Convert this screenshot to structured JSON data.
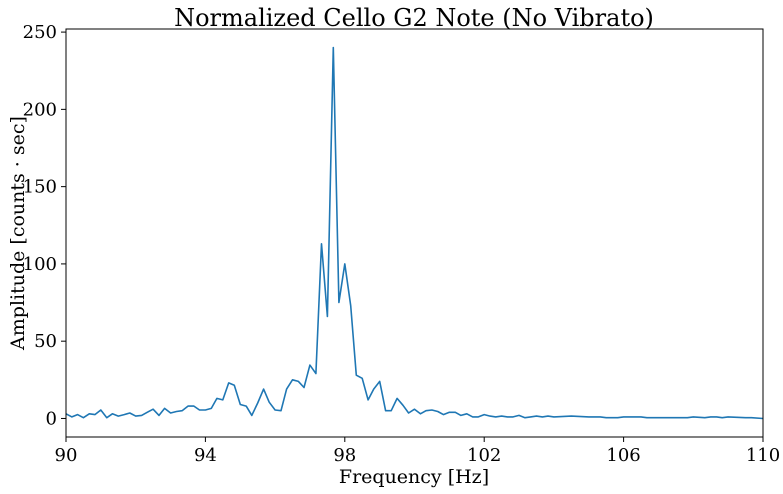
{
  "chart_data": {
    "type": "line",
    "title": "Normalized Cello G2 Note (No Vibrato)",
    "xlabel": "Frequency [Hz]",
    "ylabel": "Amplitude [counts · sec]",
    "xlim": [
      90,
      110
    ],
    "ylim": [
      -12,
      252
    ],
    "x_ticks": [
      90,
      94,
      98,
      102,
      106,
      110
    ],
    "x_tick_labels": [
      "90",
      "94",
      "98",
      "102",
      "106",
      "110"
    ],
    "y_ticks": [
      0,
      50,
      100,
      150,
      200,
      250
    ],
    "y_tick_labels": [
      "0",
      "50",
      "100",
      "150",
      "200",
      "250"
    ],
    "grid": false,
    "series": [
      {
        "color": "#1f77b4",
        "x": [
          90.0,
          90.17,
          90.33,
          90.5,
          90.67,
          90.83,
          91.0,
          91.17,
          91.33,
          91.5,
          91.67,
          91.83,
          92.0,
          92.17,
          92.33,
          92.5,
          92.67,
          92.83,
          93.0,
          93.17,
          93.33,
          93.5,
          93.67,
          93.83,
          94.0,
          94.17,
          94.33,
          94.5,
          94.67,
          94.83,
          95.0,
          95.17,
          95.33,
          95.5,
          95.67,
          95.83,
          96.0,
          96.17,
          96.33,
          96.5,
          96.67,
          96.83,
          97.0,
          97.17,
          97.33,
          97.5,
          97.67,
          97.83,
          98.0,
          98.17,
          98.33,
          98.5,
          98.67,
          98.83,
          99.0,
          99.17,
          99.33,
          99.5,
          99.67,
          99.83,
          100.0,
          100.17,
          100.33,
          100.5,
          100.67,
          100.83,
          101.0,
          101.17,
          101.33,
          101.5,
          101.67,
          101.83,
          102.0,
          102.17,
          102.33,
          102.5,
          102.67,
          102.83,
          103.0,
          103.17,
          103.33,
          103.5,
          103.67,
          103.83,
          104.0,
          104.5,
          105.0,
          105.33,
          105.5,
          105.83,
          106.0,
          106.17,
          106.5,
          106.67,
          107.0,
          107.5,
          107.83,
          108.0,
          108.33,
          108.5,
          108.67,
          108.83,
          109.0,
          109.5,
          109.67,
          110.0
        ],
        "y": [
          3,
          1,
          2.5,
          0.5,
          3,
          2.5,
          5.5,
          0.5,
          3,
          1.5,
          2.5,
          3.5,
          1.5,
          2,
          4,
          6,
          2,
          6.5,
          3.5,
          4.5,
          5,
          8,
          8,
          5.5,
          5.5,
          6.5,
          13,
          12,
          23,
          21.5,
          9,
          8,
          2,
          10,
          19,
          10.5,
          5.5,
          5,
          19,
          25,
          24,
          20,
          34.5,
          29,
          113,
          66,
          240,
          75,
          100,
          73,
          28,
          26,
          12,
          19,
          24,
          5,
          5,
          13,
          8.5,
          3.5,
          6,
          3,
          5,
          5.5,
          4.5,
          2.5,
          4,
          4,
          2,
          3,
          1,
          1,
          2.5,
          1.5,
          1,
          1.5,
          1,
          1,
          2,
          0.5,
          1,
          1.5,
          1,
          1.5,
          1,
          1.5,
          1,
          1,
          0.5,
          0.5,
          1,
          1,
          1,
          0.5,
          0.5,
          0.5,
          0.5,
          1,
          0.5,
          1,
          1,
          0.5,
          1,
          0.5,
          0.5,
          0
        ]
      }
    ]
  }
}
